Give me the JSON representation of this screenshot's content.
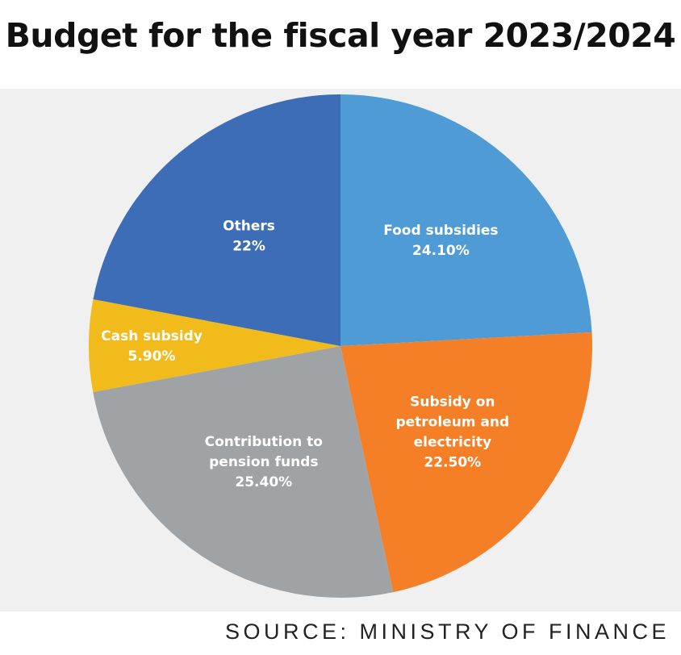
{
  "chart_data": {
    "type": "pie",
    "title": "Budget for the fiscal year 2023/2024",
    "source": "SOURCE: MINISTRY OF FINANCE",
    "slices": [
      {
        "label_lines": [
          "Food subsidies"
        ],
        "value": 24.1,
        "value_label": "24.10%",
        "color": "#4e9bd6"
      },
      {
        "label_lines": [
          "Subsidy on",
          "petroleum and",
          "electricity"
        ],
        "value": 22.5,
        "value_label": "22.50%",
        "color": "#f47f26"
      },
      {
        "label_lines": [
          "Contribution to",
          "pension funds"
        ],
        "value": 25.4,
        "value_label": "25.40%",
        "color": "#9fa3a6"
      },
      {
        "label_lines": [
          "Cash subsidy"
        ],
        "value": 5.9,
        "value_label": "5.90%",
        "color": "#f1bb1c"
      },
      {
        "label_lines": [
          "Others"
        ],
        "value": 22,
        "value_label": "22%",
        "color": "#3e6db8"
      }
    ],
    "start": "12 o'clock",
    "direction": "clockwise",
    "legend": "none"
  }
}
